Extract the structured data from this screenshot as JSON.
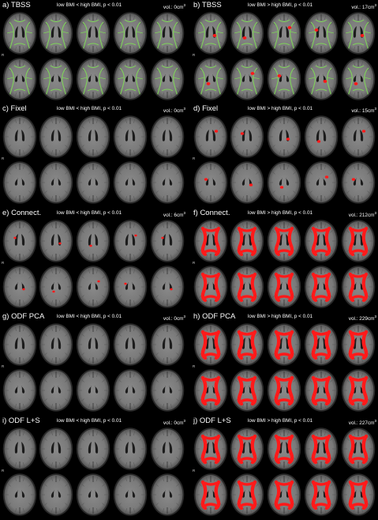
{
  "panels": [
    {
      "title": "a) TBSS",
      "condition": "low BMI < high BMI, p < 0.01",
      "vol_label": "vol.: 0cm",
      "vol_sup": "3",
      "r_marker": "R",
      "overlay": "tbss-skeleton",
      "effect_level": 0
    },
    {
      "title": "b) TBSS",
      "condition": "low BMI > high BMI, p < 0.01",
      "vol_label": "vol.: 17cm",
      "vol_sup": "3",
      "r_marker": "R",
      "overlay": "tbss-skeleton",
      "effect_level": 0.12
    },
    {
      "title": "c) Fixel",
      "condition": "low BMI < high BMI, p < 0.01",
      "vol_label": "vol.: 0cm",
      "vol_sup": "3",
      "r_marker": "R",
      "overlay": "none",
      "effect_level": 0
    },
    {
      "title": "d) Fixel",
      "condition": "low BMI > high BMI, p < 0.01",
      "vol_label": "vol.: 15cm",
      "vol_sup": "3",
      "r_marker": "R",
      "overlay": "none",
      "effect_level": 0.1
    },
    {
      "title": "e) Connect.",
      "condition": "low BMI < high BMI, p < 0.01",
      "vol_label": "vol.: 6cm",
      "vol_sup": "3",
      "r_marker": "R",
      "overlay": "none",
      "effect_level": 0.05
    },
    {
      "title": "f) Connect.",
      "condition": "low BMI > high BMI, p < 0.01",
      "vol_label": "vol.: 212cm",
      "vol_sup": "3",
      "r_marker": "R",
      "overlay": "none",
      "effect_level": 0.9
    },
    {
      "title": "g) ODF PCA",
      "condition": "low BMI < high BMI, p < 0.01",
      "vol_label": "vol.: 0cm",
      "vol_sup": "3",
      "r_marker": "R",
      "overlay": "none",
      "effect_level": 0
    },
    {
      "title": "h) ODF PCA",
      "condition": "low BMI > high BMI, p < 0.01",
      "vol_label": "vol.: 229cm",
      "vol_sup": "3",
      "r_marker": "R",
      "overlay": "none",
      "effect_level": 1.0
    },
    {
      "title": "i) ODF L+S",
      "condition": "low BMI < high BMI, p < 0.01",
      "vol_label": "vol.: 0cm",
      "vol_sup": "3",
      "r_marker": "R",
      "overlay": "none",
      "effect_level": 0
    },
    {
      "title": "j) ODF L+S",
      "condition": "low BMI > high BMI, p < 0.01",
      "vol_label": "vol.: 227cm",
      "vol_sup": "3",
      "r_marker": "R",
      "overlay": "none",
      "effect_level": 0.98
    }
  ],
  "colors": {
    "background": "#000000",
    "brain_tissue": "#7a7a7a",
    "brain_dark": "#4a4a4a",
    "ventricle": "#1c1c1c",
    "skeleton": "#7fd35a",
    "effect": "#ff1a1a"
  }
}
